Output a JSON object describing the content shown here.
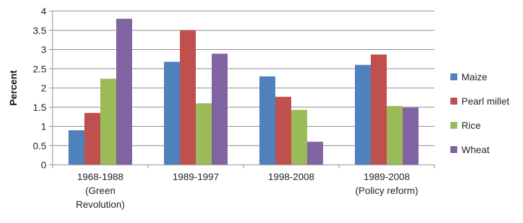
{
  "chart_data": {
    "type": "bar",
    "ylabel": "Percent",
    "xlabel": "",
    "ylim": [
      0,
      4
    ],
    "yticks": [
      "0",
      "0.5",
      "1",
      "1.5",
      "2",
      "2.5",
      "3",
      "3.5",
      "4"
    ],
    "ytick_values": [
      0,
      0.5,
      1,
      1.5,
      2,
      2.5,
      3,
      3.5,
      4
    ],
    "grid": true,
    "legend_position": "right",
    "categories": [
      [
        "1968-1988",
        "(Green",
        "Revolution)"
      ],
      [
        "1989-1997"
      ],
      [
        "1998-2008"
      ],
      [
        "1989-2008",
        "(Policy reform)"
      ]
    ],
    "series": [
      {
        "name": "Maize",
        "color": "#4F81BD",
        "values": [
          0.9,
          2.68,
          2.3,
          2.6
        ]
      },
      {
        "name": "Pearl millet",
        "color": "#C0504D",
        "values": [
          1.35,
          3.5,
          1.77,
          2.87
        ]
      },
      {
        "name": "Rice",
        "color": "#9BBB59",
        "values": [
          2.24,
          1.6,
          1.43,
          1.53
        ]
      },
      {
        "name": "Wheat",
        "color": "#8064A2",
        "values": [
          3.8,
          2.89,
          0.6,
          1.49
        ]
      }
    ]
  }
}
